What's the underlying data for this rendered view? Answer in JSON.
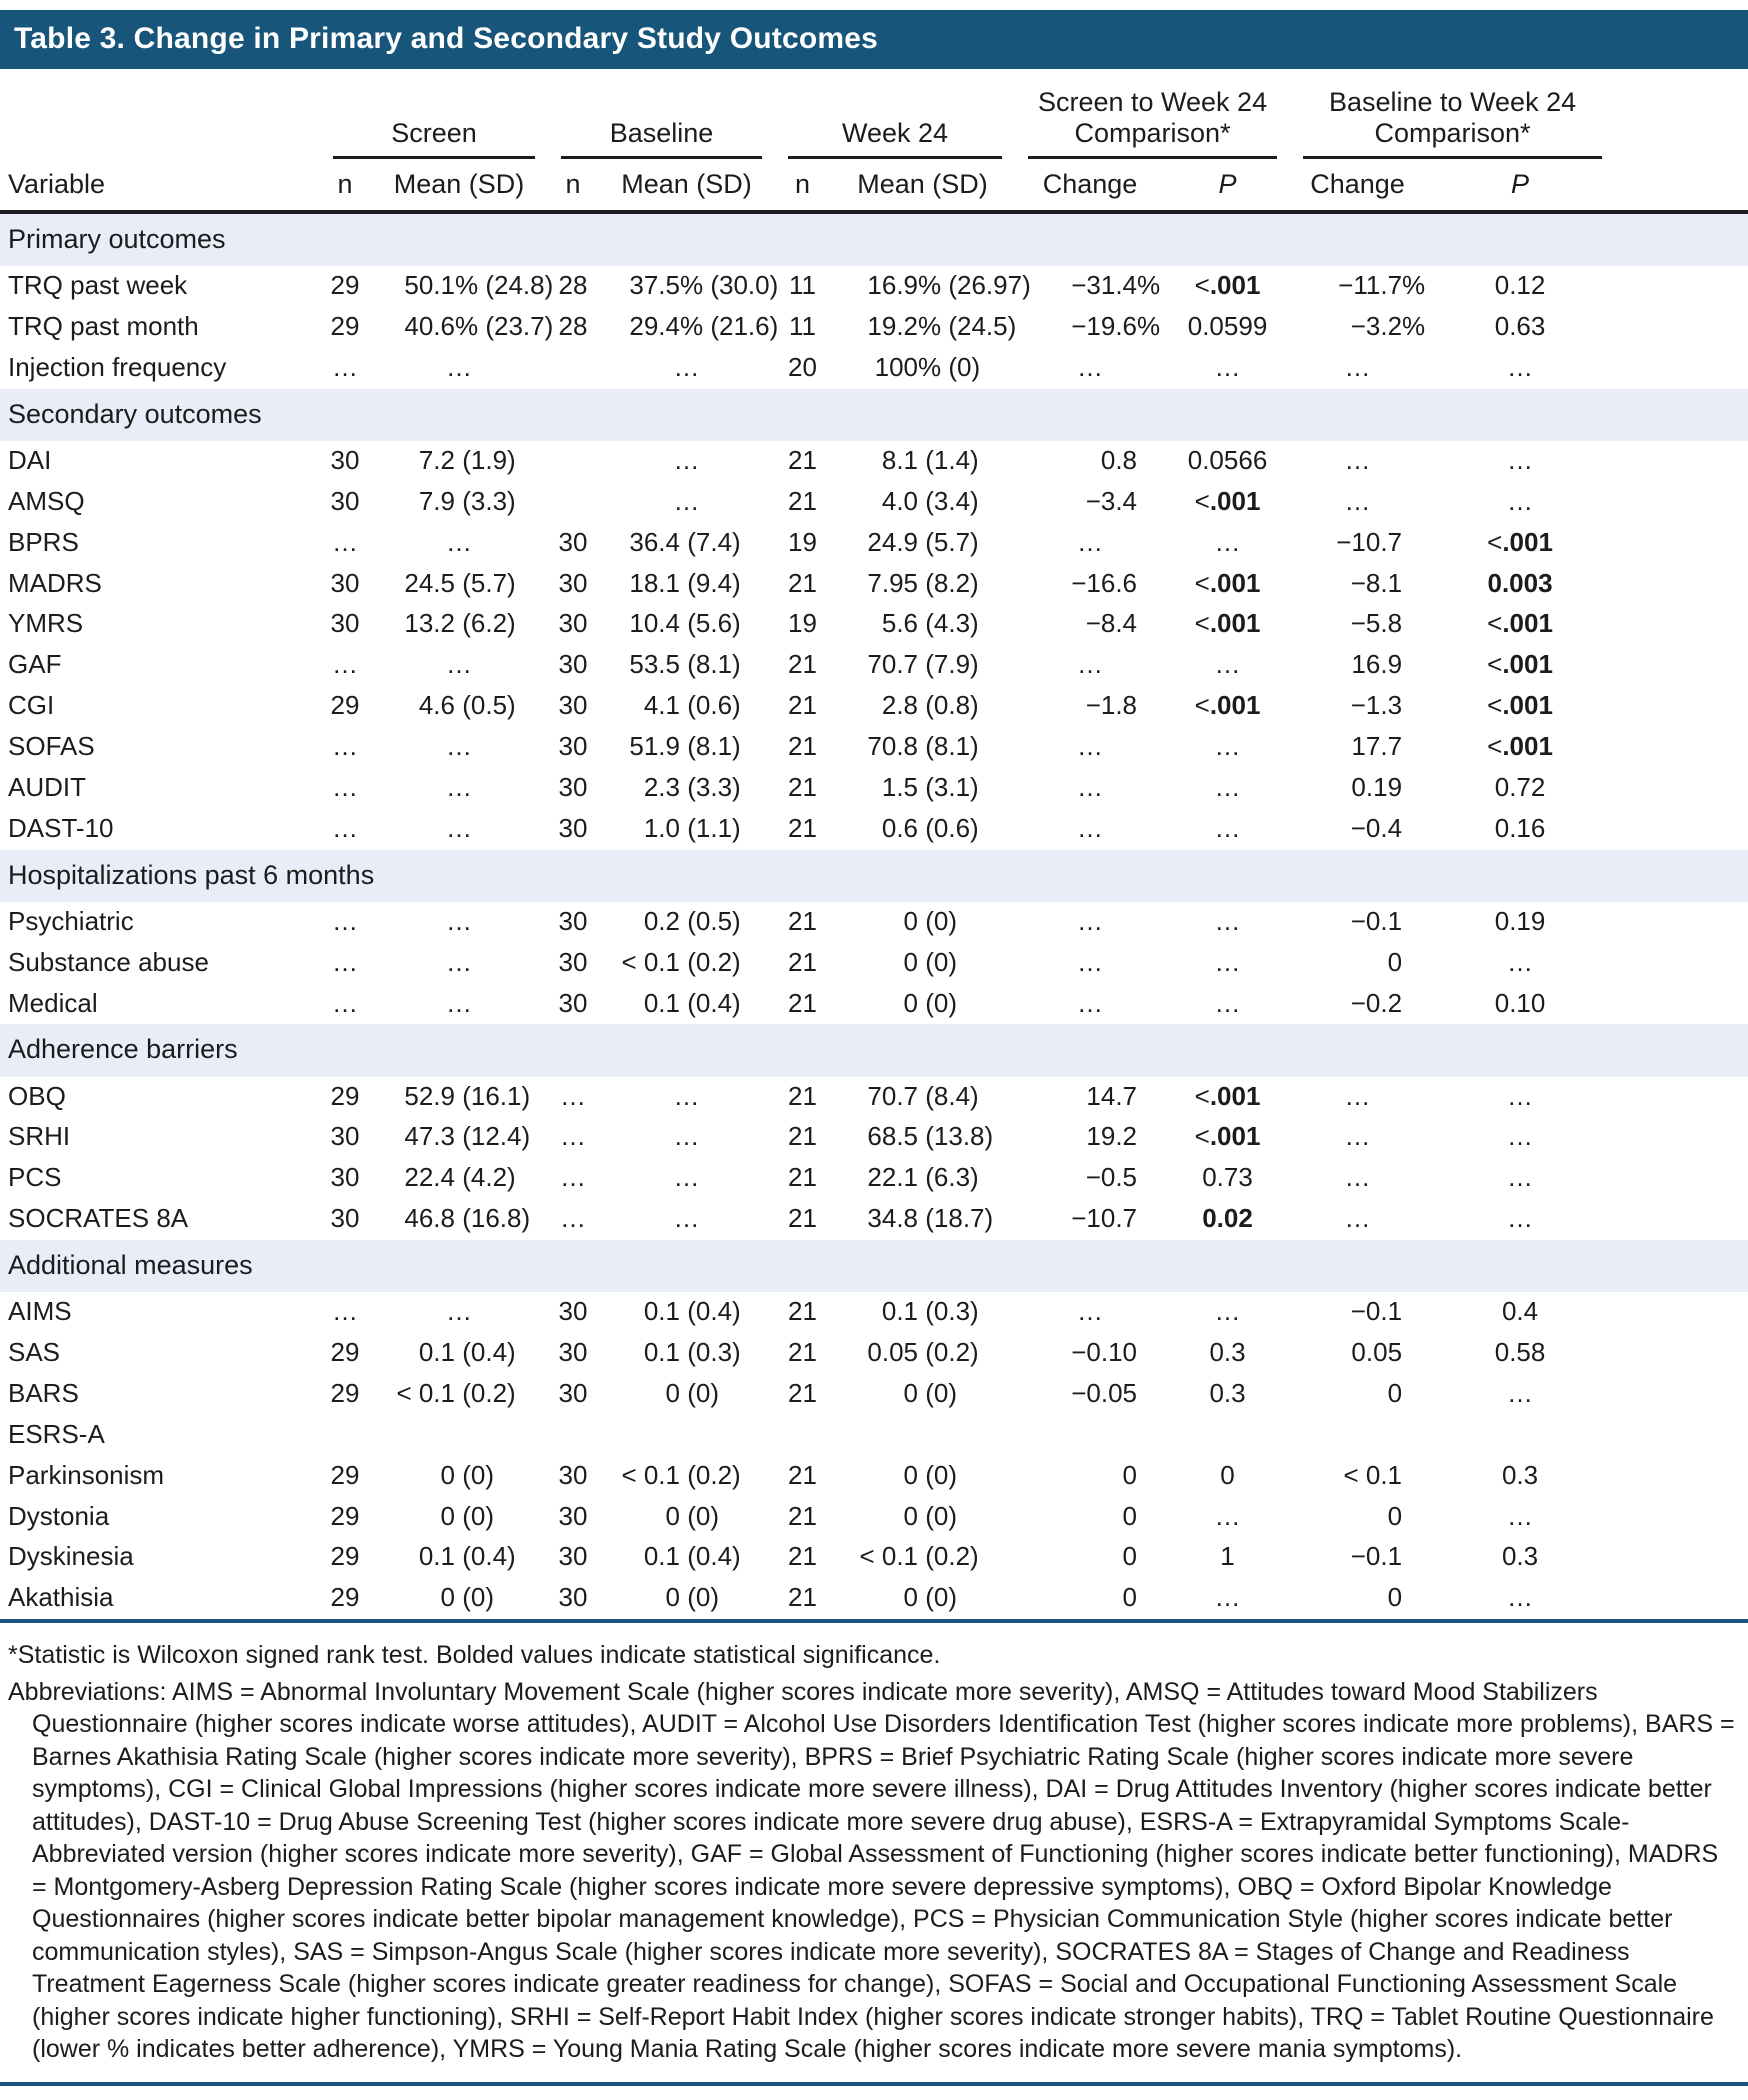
{
  "title": "Table 3. Change in Primary and Secondary Study Outcomes",
  "colors": {
    "title_bar": "#17557a",
    "section_band": "#e9edf8",
    "rule_dark": "#17557a",
    "text": "#1c1c1c"
  },
  "header": {
    "variable": "Variable",
    "groups": [
      {
        "label": "Screen",
        "sub": [
          "n",
          "Mean (SD)"
        ]
      },
      {
        "label": "Baseline",
        "sub": [
          "n",
          "Mean (SD)"
        ]
      },
      {
        "label": "Week 24",
        "sub": [
          "n",
          "Mean (SD)"
        ]
      },
      {
        "label": "Screen to Week 24 Comparison*",
        "sub": [
          "Change",
          "P"
        ]
      },
      {
        "label": "Baseline to Week 24 Comparison*",
        "sub": [
          "Change",
          "P"
        ]
      }
    ]
  },
  "sections": [
    {
      "label": "Primary outcomes",
      "rows": [
        {
          "label": "TRQ past week",
          "cells": [
            "29",
            "50.1% (24.8)",
            "28",
            "37.5% (30.0)",
            "11",
            "16.9% (26.97)",
            "−31.4%",
            {
              "v": "<.001",
              "b": true
            },
            "−11.7%",
            "0.12"
          ]
        },
        {
          "label": "TRQ past month",
          "cells": [
            "29",
            "40.6% (23.7)",
            "28",
            "29.4% (21.6)",
            "11",
            "19.2% (24.5)",
            "−19.6%",
            "0.0599",
            "−3.2%",
            "0.63"
          ]
        },
        {
          "label": "Injection frequency",
          "cells": [
            "…",
            "…",
            "",
            "…",
            "20",
            "100% (0)",
            "…",
            "…",
            "…",
            "…"
          ]
        }
      ]
    },
    {
      "label": "Secondary outcomes",
      "rows": [
        {
          "label": "DAI",
          "cells": [
            "30",
            "7.2 (1.9)",
            "",
            "…",
            "21",
            "8.1 (1.4)",
            "0.8",
            "0.0566",
            "…",
            "…"
          ]
        },
        {
          "label": "AMSQ",
          "cells": [
            "30",
            "7.9 (3.3)",
            "",
            "…",
            "21",
            "4.0 (3.4)",
            "−3.4",
            {
              "v": "<.001",
              "b": true
            },
            "…",
            "…"
          ]
        },
        {
          "label": "BPRS",
          "cells": [
            "…",
            "…",
            "30",
            "36.4 (7.4)",
            "19",
            "24.9 (5.7)",
            "…",
            "…",
            "−10.7",
            {
              "v": "<.001",
              "b": true
            }
          ]
        },
        {
          "label": "MADRS",
          "cells": [
            "30",
            "24.5 (5.7)",
            "30",
            "18.1 (9.4)",
            "21",
            "7.95 (8.2)",
            "−16.6",
            {
              "v": "<.001",
              "b": true
            },
            "−8.1",
            {
              "v": "0.003",
              "b": true
            }
          ]
        },
        {
          "label": "YMRS",
          "cells": [
            "30",
            "13.2 (6.2)",
            "30",
            "10.4 (5.6)",
            "19",
            "5.6 (4.3)",
            "−8.4",
            {
              "v": "<.001",
              "b": true
            },
            "−5.8",
            {
              "v": "<.001",
              "b": true
            }
          ]
        },
        {
          "label": "GAF",
          "cells": [
            "…",
            "…",
            "30",
            "53.5 (8.1)",
            "21",
            "70.7 (7.9)",
            "…",
            "…",
            "16.9",
            {
              "v": "<.001",
              "b": true
            }
          ]
        },
        {
          "label": "CGI",
          "cells": [
            "29",
            "4.6 (0.5)",
            "30",
            "4.1 (0.6)",
            "21",
            "2.8 (0.8)",
            "−1.8",
            {
              "v": "<.001",
              "b": true
            },
            "−1.3",
            {
              "v": "<.001",
              "b": true
            }
          ]
        },
        {
          "label": "SOFAS",
          "cells": [
            "…",
            "…",
            "30",
            "51.9 (8.1)",
            "21",
            "70.8 (8.1)",
            "…",
            "…",
            "17.7",
            {
              "v": "<.001",
              "b": true
            }
          ]
        },
        {
          "label": "AUDIT",
          "cells": [
            "…",
            "…",
            "30",
            "2.3 (3.3)",
            "21",
            "1.5 (3.1)",
            "…",
            "…",
            "0.19",
            "0.72"
          ]
        },
        {
          "label": "DAST-10",
          "cells": [
            "…",
            "…",
            "30",
            "1.0 (1.1)",
            "21",
            "0.6 (0.6)",
            "…",
            "…",
            "−0.4",
            "0.16"
          ]
        }
      ]
    },
    {
      "label": "Hospitalizations past 6 months",
      "rows": [
        {
          "label": "Psychiatric",
          "cells": [
            "…",
            "…",
            "30",
            "0.2 (0.5)",
            "21",
            "0 (0)",
            "…",
            "…",
            "−0.1",
            "0.19"
          ]
        },
        {
          "label": "Substance abuse",
          "cells": [
            "…",
            "…",
            "30",
            "< 0.1 (0.2)",
            "21",
            "0 (0)",
            "…",
            "…",
            "0",
            "…"
          ]
        },
        {
          "label": "Medical",
          "cells": [
            "…",
            "…",
            "30",
            "0.1 (0.4)",
            "21",
            "0 (0)",
            "…",
            "…",
            "−0.2",
            "0.10"
          ]
        }
      ]
    },
    {
      "label": "Adherence barriers",
      "rows": [
        {
          "label": "OBQ",
          "cells": [
            "29",
            "52.9 (16.1)",
            "…",
            "…",
            "21",
            "70.7 (8.4)",
            "14.7",
            {
              "v": "<.001",
              "b": true
            },
            "…",
            "…"
          ]
        },
        {
          "label": "SRHI",
          "cells": [
            "30",
            "47.3 (12.4)",
            "…",
            "…",
            "21",
            "68.5 (13.8)",
            "19.2",
            {
              "v": "<.001",
              "b": true
            },
            "…",
            "…"
          ]
        },
        {
          "label": "PCS",
          "cells": [
            "30",
            "22.4 (4.2)",
            "…",
            "…",
            "21",
            "22.1 (6.3)",
            "−0.5",
            "0.73",
            "…",
            "…"
          ]
        },
        {
          "label": "SOCRATES 8A",
          "cells": [
            "30",
            "46.8 (16.8)",
            "…",
            "…",
            "21",
            "34.8 (18.7)",
            "−10.7",
            {
              "v": "0.02",
              "b": true
            },
            "…",
            "…"
          ]
        }
      ]
    },
    {
      "label": "Additional measures",
      "rows": [
        {
          "label": "AIMS",
          "cells": [
            "…",
            "…",
            "30",
            "0.1 (0.4)",
            "21",
            "0.1 (0.3)",
            "…",
            "…",
            "−0.1",
            "0.4"
          ]
        },
        {
          "label": "SAS",
          "cells": [
            "29",
            "0.1 (0.4)",
            "30",
            "0.1 (0.3)",
            "21",
            "0.05 (0.2)",
            "−0.10",
            "0.3",
            "0.05",
            "0.58"
          ]
        },
        {
          "label": "BARS",
          "cells": [
            "29",
            "< 0.1 (0.2)",
            "30",
            "0 (0)",
            "21",
            "0 (0)",
            "−0.05",
            "0.3",
            "0",
            "…"
          ]
        },
        {
          "label": "ESRS-A",
          "cells": [
            "",
            "",
            "",
            "",
            "",
            "",
            "",
            "",
            "",
            ""
          ]
        },
        {
          "label": "Parkinsonism",
          "cells": [
            "29",
            "0 (0)",
            "30",
            "< 0.1 (0.2)",
            "21",
            "0 (0)",
            "0",
            "0",
            "< 0.1",
            "0.3"
          ]
        },
        {
          "label": "Dystonia",
          "cells": [
            "29",
            "0 (0)",
            "30",
            "0 (0)",
            "21",
            "0 (0)",
            "0",
            "…",
            "0",
            "…"
          ]
        },
        {
          "label": "Dyskinesia",
          "cells": [
            "29",
            "0.1 (0.4)",
            "30",
            "0.1 (0.4)",
            "21",
            "< 0.1 (0.2)",
            "0",
            "1",
            "−0.1",
            "0.3"
          ]
        },
        {
          "label": "Akathisia",
          "cells": [
            "29",
            "0 (0)",
            "30",
            "0 (0)",
            "21",
            "0 (0)",
            "0",
            "…",
            "0",
            "…"
          ]
        }
      ]
    }
  ],
  "footnotes": {
    "significance": "*Statistic is Wilcoxon signed rank test. Bolded values indicate statistical significance.",
    "abbreviations": "Abbreviations: AIMS = Abnormal Involuntary Movement Scale (higher scores indicate more severity), AMSQ = Attitudes toward Mood Stabilizers Questionnaire (higher scores indicate worse attitudes), AUDIT = Alcohol Use Disorders Identification Test (higher scores indicate more problems), BARS = Barnes Akathisia Rating Scale (higher scores indicate more severity), BPRS = Brief Psychiatric Rating Scale (higher scores indicate more severe symptoms), CGI = Clinical Global Impressions (higher scores indicate more severe illness), DAI = Drug Attitudes Inventory (higher scores indicate better attitudes), DAST-10 = Drug Abuse Screening Test (higher scores indicate more severe drug abuse), ESRS-A = Extrapyramidal Symptoms Scale-Abbreviated version (higher scores indicate more severity), GAF = Global Assessment of Functioning (higher scores indicate better functioning), MADRS = Montgomery-Asberg Depression Rating Scale (higher scores indicate more severe depressive symptoms), OBQ = Oxford Bipolar Knowledge Questionnaires (higher scores indicate better bipolar management knowledge), PCS = Physician Communication Style (higher scores indicate better communication styles), SAS = Simpson-Angus Scale (higher scores indicate more severity), SOCRATES 8A = Stages of Change and Readiness Treatment Eagerness Scale (higher scores indicate greater readiness for change), SOFAS = Social and Occupational Functioning Assessment Scale (higher scores indicate higher functioning), SRHI = Self-Report Habit Index (higher scores indicate stronger habits), TRQ = Tablet Routine Questionnaire (lower % indicates better adherence), YMRS = Young Mania Rating Scale (higher scores indicate more severe mania symptoms)."
  }
}
